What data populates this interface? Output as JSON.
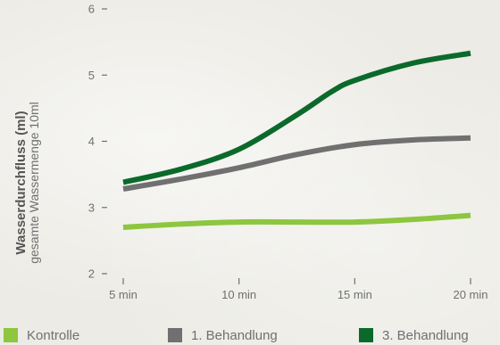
{
  "chart_data": {
    "type": "line",
    "ylabel": "Wasserdurchfluss (ml)",
    "ylabel_sub": "gesamte Wassermenge 10ml",
    "x_tick_labels": [
      "5 min",
      "10 min",
      "15 min",
      "20 min"
    ],
    "x_ticks": [
      5,
      10,
      15,
      20
    ],
    "xlim": [
      5,
      20
    ],
    "y_ticks": [
      2,
      3,
      4,
      5,
      6
    ],
    "ylim": [
      2,
      6
    ],
    "grid": false,
    "legend_position": "bottom",
    "series": [
      {
        "name": "Kontrolle",
        "color": "#8dc63f",
        "x": [
          5,
          7.5,
          10,
          12.5,
          15,
          17.5,
          20
        ],
        "values": [
          2.7,
          2.75,
          2.78,
          2.78,
          2.78,
          2.82,
          2.88
        ]
      },
      {
        "name": "1. Behandlung",
        "color": "#707070",
        "x": [
          5,
          7.5,
          10,
          12.5,
          15,
          17.5,
          20
        ],
        "values": [
          3.28,
          3.43,
          3.6,
          3.8,
          3.95,
          4.02,
          4.05
        ]
      },
      {
        "name": "3. Behandlung",
        "color": "#0b6a2b",
        "x": [
          5,
          7.5,
          10,
          12.5,
          14,
          15,
          17.5,
          20
        ],
        "values": [
          3.38,
          3.58,
          3.88,
          4.4,
          4.75,
          4.92,
          5.18,
          5.33
        ]
      }
    ]
  }
}
